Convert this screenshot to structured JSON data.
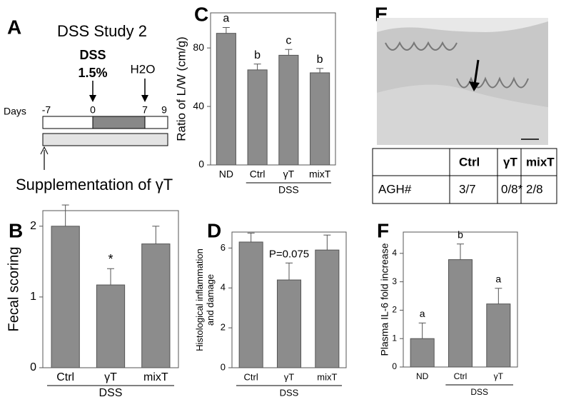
{
  "panel_a": {
    "label": "A",
    "title": "DSS Study 2",
    "treatment": "DSS",
    "dose": "1.5%",
    "recovery": "H2O",
    "days_label": "Days",
    "days": [
      "-7",
      "0",
      "7",
      "9"
    ],
    "supplement": "Supplementation of γT"
  },
  "panel_e": {
    "label": "E",
    "header": [
      "Ctrl",
      "γT",
      "mixT"
    ],
    "row_label": "AGH#",
    "row": [
      "3/7",
      "0/8*",
      "2/8"
    ]
  },
  "chart_data": [
    {
      "type": "bar",
      "panel": "B",
      "ylabel": [
        "Fecal scoring"
      ],
      "categories": [
        "Ctrl",
        "γT",
        "mixT"
      ],
      "values": [
        2.0,
        1.17,
        1.75
      ],
      "errors": [
        0.3,
        0.23,
        0.25
      ],
      "significance": [
        null,
        "*",
        null
      ],
      "groups": [
        {
          "label": "DSS",
          "categories": [
            "Ctrl",
            "γT",
            "mixT"
          ]
        }
      ],
      "ylim": [
        0,
        2.22
      ],
      "yticks": [
        0,
        1,
        2
      ],
      "color": "#8c8c8c"
    },
    {
      "type": "bar",
      "panel": "C",
      "ylabel": [
        "Ratio of L/W (cm/g)"
      ],
      "categories": [
        "ND",
        "Ctrl",
        "γT",
        "mixT"
      ],
      "values": [
        90,
        65,
        75,
        63
      ],
      "errors": [
        4,
        4,
        4,
        3
      ],
      "significance": [
        "a",
        "b",
        "c",
        "b"
      ],
      "groups": [
        {
          "label": "DSS",
          "categories": [
            "Ctrl",
            "γT",
            "mixT"
          ]
        }
      ],
      "ylim": [
        0,
        104
      ],
      "yticks": [
        0,
        40,
        80
      ],
      "color": "#8c8c8c"
    },
    {
      "type": "bar",
      "panel": "D",
      "ylabel": [
        "Histological inflammation",
        "and damage"
      ],
      "categories": [
        "Ctrl",
        "γT",
        "mixT"
      ],
      "values": [
        6.3,
        4.4,
        5.9
      ],
      "errors": [
        0.45,
        0.85,
        0.75
      ],
      "significance": [
        null,
        "P=0.075",
        null
      ],
      "groups": [
        {
          "label": "DSS",
          "categories": [
            "Ctrl",
            "γT",
            "mixT"
          ]
        }
      ],
      "ylim": [
        0,
        6.8
      ],
      "yticks": [
        0,
        2,
        4,
        6
      ],
      "color": "#8c8c8c"
    },
    {
      "type": "bar",
      "panel": "F",
      "ylabel": [
        "Plasma IL-6 fold increase"
      ],
      "categories": [
        "ND",
        "Ctrl",
        "γT"
      ],
      "values": [
        1.0,
        3.78,
        2.22
      ],
      "errors": [
        0.55,
        0.55,
        0.55
      ],
      "significance": [
        "a",
        "b",
        "a"
      ],
      "groups": [
        {
          "label": "DSS",
          "categories": [
            "Ctrl",
            "γT"
          ]
        }
      ],
      "ylim": [
        0,
        4.75
      ],
      "yticks": [
        0,
        1,
        2,
        3,
        4
      ],
      "color": "#8c8c8c"
    }
  ]
}
